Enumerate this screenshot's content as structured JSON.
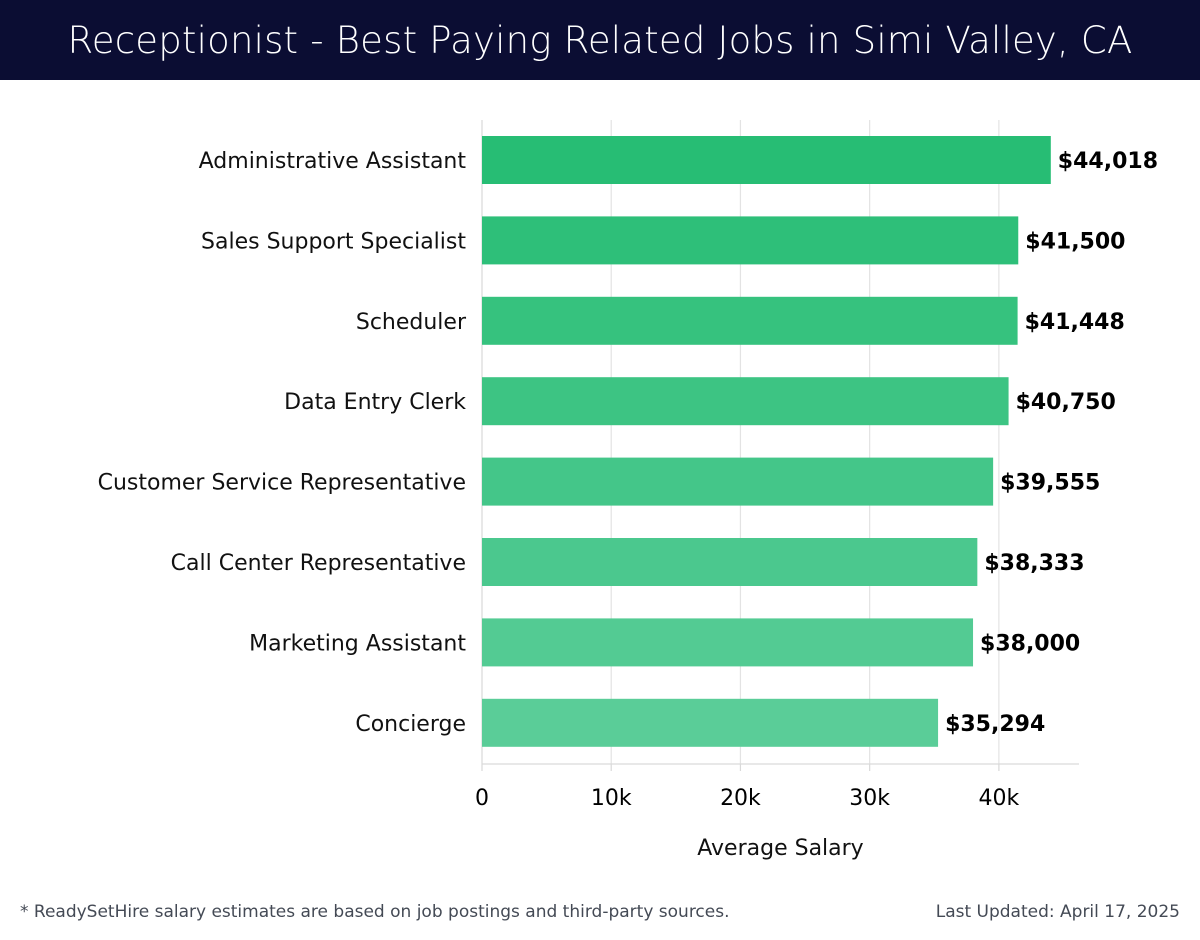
{
  "header": {
    "title": "Receptionist - Best Paying Related Jobs in Simi Valley, CA"
  },
  "footer": {
    "note": "* ReadySetHire salary estimates are based on job postings and third-party sources.",
    "updated": "Last Updated: April 17, 2025"
  },
  "colors": {
    "header_bg": "#0b0d33",
    "bar_top": "#27bd74",
    "bar_bottom": "#5acd98",
    "grid": "#e3e3e3"
  },
  "chart_data": {
    "type": "bar",
    "orientation": "horizontal",
    "title": "Receptionist - Best Paying Related Jobs in Simi Valley, CA",
    "xlabel": "Average Salary",
    "ylabel": "",
    "xlim": [
      0,
      46200
    ],
    "xticks": [
      0,
      10000,
      20000,
      30000,
      40000
    ],
    "xtick_labels": [
      "0",
      "10k",
      "20k",
      "30k",
      "40k"
    ],
    "grid": "vertical",
    "categories": [
      "Administrative Assistant",
      "Sales Support Specialist",
      "Scheduler",
      "Data Entry Clerk",
      "Customer Service Representative",
      "Call Center Representative",
      "Marketing Assistant",
      "Concierge"
    ],
    "values": [
      44018,
      41500,
      41448,
      40750,
      39555,
      38333,
      38000,
      35294
    ],
    "value_labels": [
      "$44,018",
      "$41,500",
      "$41,448",
      "$40,750",
      "$39,555",
      "$38,333",
      "$38,000",
      "$35,294"
    ]
  }
}
